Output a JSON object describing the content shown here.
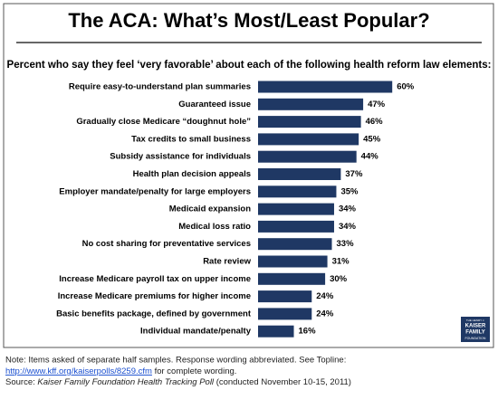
{
  "chart_data": {
    "type": "hbar",
    "title": "The ACA: What’s Most/Least Popular?",
    "subtitle": "Percent who say they feel ‘very favorable’ about each of the following health reform law elements:",
    "categories": [
      "Require easy-to-understand plan summaries",
      "Guaranteed issue",
      "Gradually close Medicare “doughnut hole”",
      "Tax credits to small business",
      "Subsidy assistance for individuals",
      "Health plan decision appeals",
      "Employer mandate/penalty for large employers",
      "Medicaid expansion",
      "Medical loss ratio",
      "No cost sharing for preventative services",
      "Rate review",
      "Increase Medicare payroll tax on upper income",
      "Increase Medicare premiums for higher income",
      "Basic benefits package, defined by government",
      "Individual mandate/penalty"
    ],
    "values": [
      60,
      47,
      46,
      45,
      44,
      37,
      35,
      34,
      34,
      33,
      31,
      30,
      24,
      24,
      16
    ],
    "value_labels": [
      "60%",
      "47%",
      "46%",
      "45%",
      "44%",
      "37%",
      "35%",
      "34%",
      "34%",
      "33%",
      "31%",
      "30%",
      "24%",
      "24%",
      "16%"
    ],
    "color": "#1f3864",
    "logo": [
      "THE HENRY J.",
      "KAISER",
      "FAMILY",
      "FOUNDATION"
    ],
    "note": {
      "line1": "Note: Items asked of separate half samples. Response wording abbreviated. See Topline:",
      "link": "http://www.kff.org/kaiserpolls/8259.cfm",
      "link_after": " for complete wording.",
      "source_label": "Source: ",
      "source_title": "Kaiser Family Foundation Health Tracking Poll",
      "source_after": " (conducted November 10-15, 2011)"
    }
  }
}
